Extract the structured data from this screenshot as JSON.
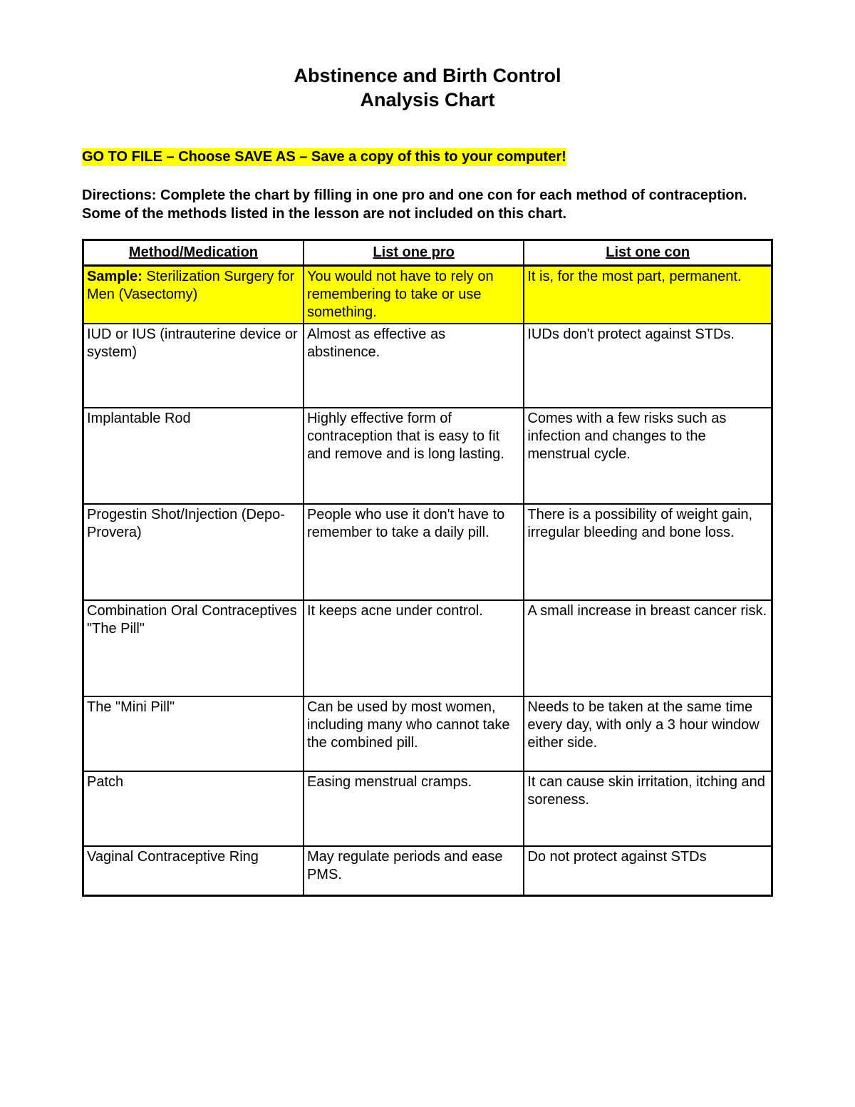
{
  "title": {
    "line1": "Abstinence and Birth Control",
    "line2": "Analysis Chart"
  },
  "instruction": "GO TO FILE – Choose SAVE AS – Save a copy of this to your computer!",
  "directions": "Directions: Complete the chart by filling in one pro and one con for each method of contraception. Some of the methods listed in the lesson are not included on this chart.",
  "columns": [
    "Method/Medication",
    "List one pro",
    "List one con"
  ],
  "sample": {
    "label": "Sample:",
    "method": " Sterilization Surgery for Men (Vasectomy)",
    "pro": "You would not have to rely on remembering to take or use something.",
    "con": "It is, for the most part, permanent."
  },
  "rows": [
    {
      "method": "IUD or IUS (intrauterine device or system)",
      "pro": " Almost as effective as abstinence.",
      "con": " IUDs don't protect against STDs.",
      "hclass": "tall"
    },
    {
      "method": "Implantable Rod",
      "pro": " Highly effective form of contraception that is easy to fit and remove and is long lasting.",
      "con": " Comes with a few risks such as infection and changes to the menstrual cycle.",
      "hclass": "taller"
    },
    {
      "method": "Progestin Shot/Injection (Depo-Provera)",
      "pro": " People who use it don't have to remember to take a daily pill.",
      "con": " There is a possibility of weight gain, irregular bleeding and bone loss.",
      "hclass": "taller"
    },
    {
      "method": "Combination Oral Contraceptives\n\"The Pill\"",
      "pro": " It keeps acne under control.",
      "con": " A small increase in breast cancer risk.",
      "hclass": "taller"
    },
    {
      "method": "The \"Mini Pill\"",
      "pro": " Can be used by most women, including many who cannot take the combined pill.",
      "con": " Needs to be taken at the same time every day, with only a 3 hour window either side.",
      "hclass": "medium"
    },
    {
      "method": "Patch",
      "pro": " Easing menstrual cramps.",
      "con": " It can cause skin irritation, itching and soreness.",
      "hclass": "medium"
    },
    {
      "method": "Vaginal Contraceptive Ring",
      "pro": " May regulate periods and ease PMS.",
      "con": " Do not protect against STDs",
      "hclass": "short"
    }
  ],
  "colors": {
    "highlight": "#ffff00",
    "text": "#000000",
    "background": "#ffffff",
    "border": "#000000"
  },
  "fonts": {
    "title_size_pt": 20,
    "body_size_pt": 15,
    "family": "Arial"
  }
}
